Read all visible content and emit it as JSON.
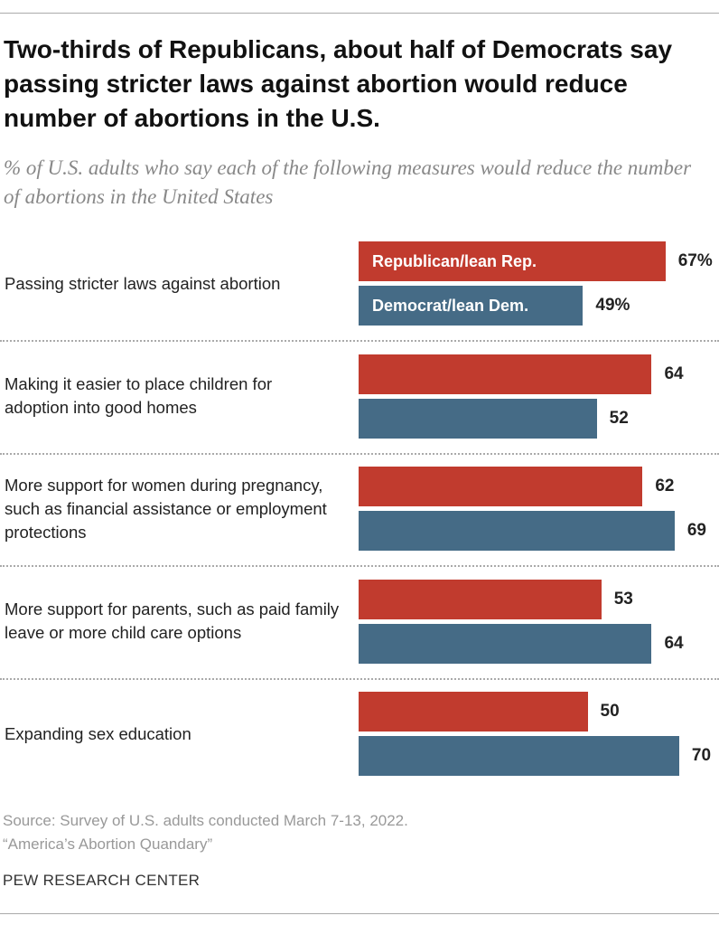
{
  "chart_data": {
    "type": "bar",
    "orientation": "horizontal",
    "title": "Two-thirds of Republicans, about half of Democrats say passing stricter laws against abortion would reduce number of abortions in the U.S.",
    "subtitle": "% of U.S. adults who say each of the following measures would reduce the number of abortions in the United States",
    "categories": [
      "Passing stricter laws against abortion",
      "Making it easier to place children for adoption into good homes",
      "More support for women during pregnancy, such as financial assistance or employment protections",
      "More support for parents, such as paid family leave or more child care options",
      "Expanding sex education"
    ],
    "series": [
      {
        "name": "Republican/lean Rep.",
        "color": "#c13b2e",
        "values": [
          67,
          64,
          62,
          53,
          50
        ],
        "value_labels": [
          "67%",
          "64",
          "62",
          "53",
          "50"
        ]
      },
      {
        "name": "Democrat/lean Dem.",
        "color": "#456b86",
        "values": [
          49,
          52,
          69,
          64,
          70
        ],
        "value_labels": [
          "49%",
          "52",
          "69",
          "64",
          "70"
        ]
      }
    ],
    "notes": [
      "Source: Survey of U.S. adults conducted March 7-13, 2022.",
      "“America’s Abortion Quandary”"
    ],
    "source": "PEW RESEARCH CENTER"
  }
}
